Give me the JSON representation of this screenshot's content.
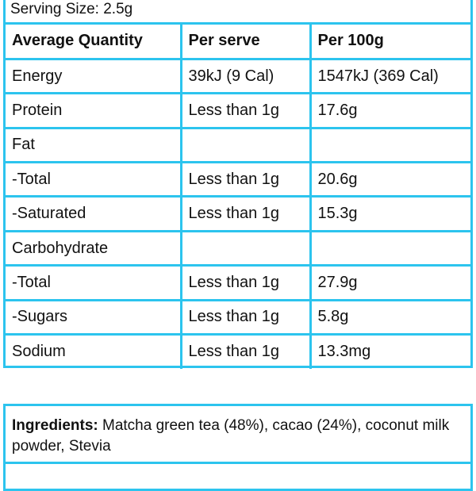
{
  "serving_size": "Serving Size: 2.5g",
  "table": {
    "headers": {
      "quantity": "Average Quantity",
      "per_serve": "Per serve",
      "per_100g": "Per 100g"
    },
    "rows": [
      {
        "label": "Energy",
        "per_serve": "39kJ (9 Cal)",
        "per_100g": "1547kJ (369 Cal)"
      },
      {
        "label": "Protein",
        "per_serve": "Less than 1g",
        "per_100g": "17.6g"
      },
      {
        "label": "Fat",
        "per_serve": "",
        "per_100g": ""
      },
      {
        "label": "-Total",
        "per_serve": "Less than 1g",
        "per_100g": "20.6g"
      },
      {
        "label": "-Saturated",
        "per_serve": "Less than 1g",
        "per_100g": "15.3g"
      },
      {
        "label": "Carbohydrate",
        "per_serve": "",
        "per_100g": ""
      },
      {
        "label": "-Total",
        "per_serve": "Less than 1g",
        "per_100g": "27.9g"
      },
      {
        "label": "-Sugars",
        "per_serve": "Less than 1g",
        "per_100g": "5.8g"
      },
      {
        "label": "Sodium",
        "per_serve": "Less than 1g",
        "per_100g": "13.3mg"
      }
    ]
  },
  "ingredients": {
    "label": "Ingredients:",
    "text": " Matcha green tea (48%), cacao (24%), coconut milk powder, Stevia"
  },
  "colors": {
    "border": "#2cc4ee",
    "text": "#111111",
    "background": "#ffffff"
  }
}
